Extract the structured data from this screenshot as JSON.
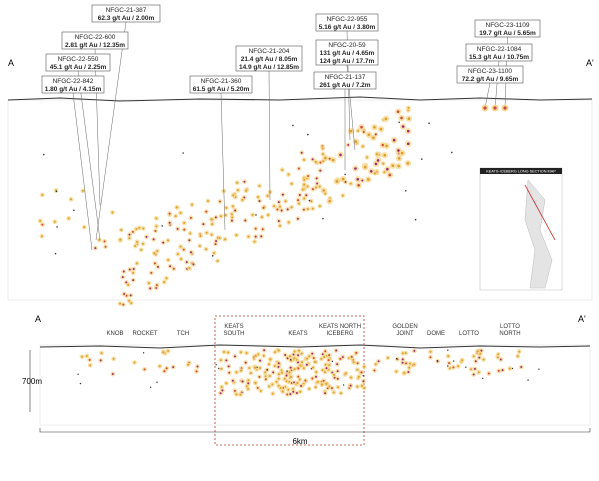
{
  "section_labels": {
    "left": "A",
    "right": "A'"
  },
  "callouts": [
    {
      "hole": "NFGC-21-387",
      "assays": [
        "62.3 g/t Au / 2.00m"
      ]
    },
    {
      "hole": "NFGC-22-600",
      "assays": [
        "2.81 g/t Au / 12.35m"
      ]
    },
    {
      "hole": "NFGC-22-550",
      "assays": [
        "45.1 g/t Au / 2.25m"
      ]
    },
    {
      "hole": "NFGC-22-842",
      "assays": [
        "1.80 g/t Au / 4.15m"
      ]
    },
    {
      "hole": "NFGC-21-204",
      "assays": [
        "21.4 g/t Au / 8.05m",
        "14.9 g/t Au / 12.85m"
      ]
    },
    {
      "hole": "NFGC-21-360",
      "assays": [
        "61.5 g/t Au / 5.20m"
      ]
    },
    {
      "hole": "NFGC-22-955",
      "assays": [
        "5.16 g/t Au / 3.80m"
      ]
    },
    {
      "hole": "NFGC-20-59",
      "assays": [
        "131 g/t Au / 4.65m",
        "124 g/t Au / 17.7m"
      ]
    },
    {
      "hole": "NFGC-21-137",
      "assays": [
        "261 g/t Au / 7.2m"
      ]
    },
    {
      "hole": "NFGC-23-1109",
      "assays": [
        "19.7 g/t Au / 5.65m"
      ]
    },
    {
      "hole": "NFGC-22-1084",
      "assays": [
        "15.3 g/t Au / 10.75m"
      ]
    },
    {
      "hole": "NFGC-23-1100",
      "assays": [
        "72.2 g/t Au / 9.65m"
      ]
    }
  ],
  "zones": [
    "KNOB",
    "ROCKET",
    "TCH",
    "KEATS SOUTH",
    "KEATS",
    "KEATS NORTH ICEBERG",
    "GOLDEN JOINT",
    "DOME",
    "LOTTO",
    "LOTTO NORTH"
  ],
  "scale": {
    "depth": "700m",
    "length": "6km"
  },
  "legend": {
    "title": "KEATS-ICEBERG LONG SECTION MAP"
  }
}
